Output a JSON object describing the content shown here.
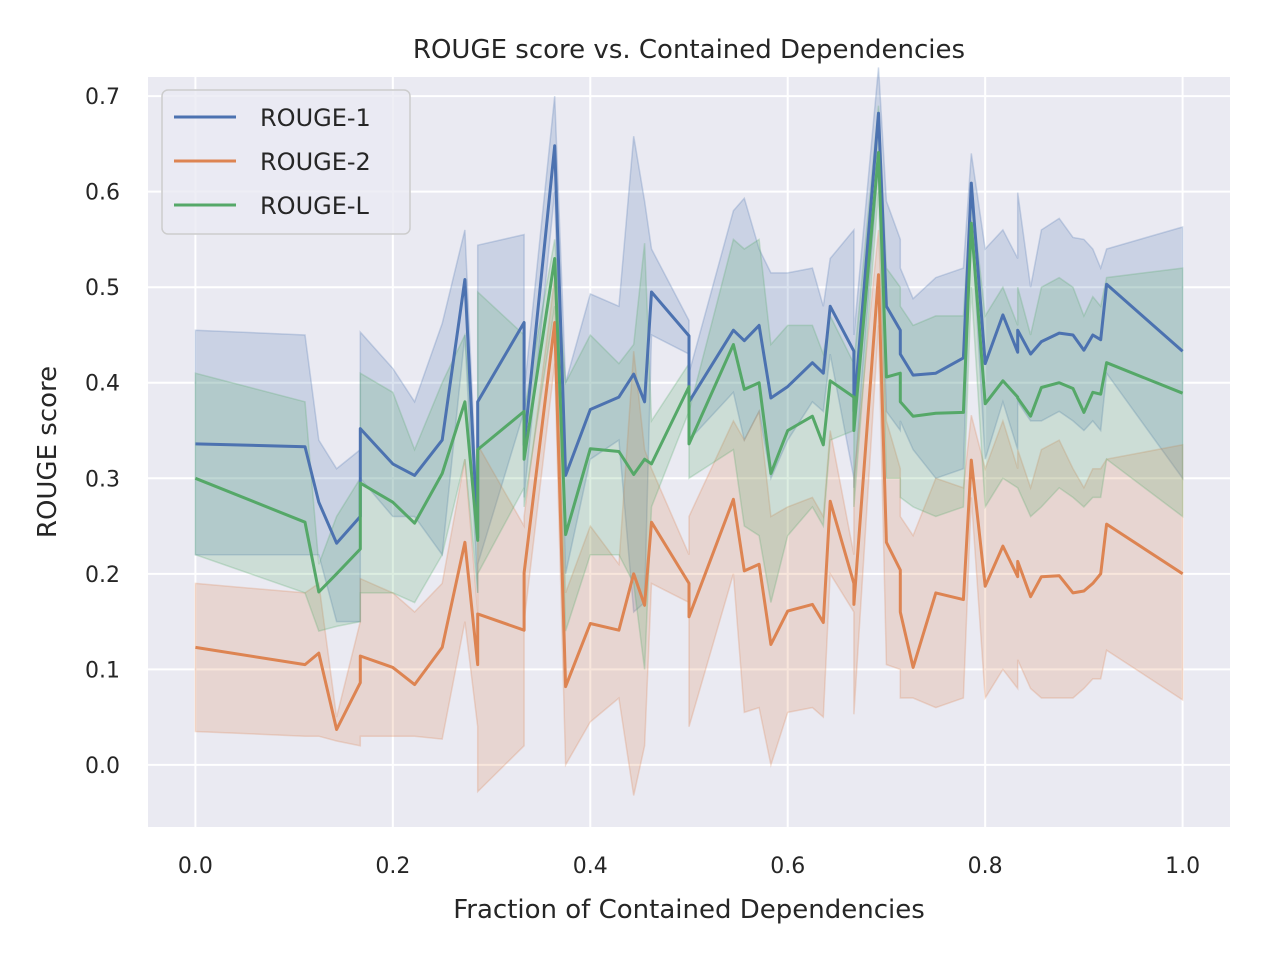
{
  "chart_data": {
    "type": "line",
    "title": "ROUGE score vs. Contained Dependencies",
    "xlabel": "Fraction of Contained Dependencies",
    "ylabel": "ROUGE score",
    "xlim": [
      -0.048,
      1.048
    ],
    "ylim": [
      -0.065,
      0.72
    ],
    "xticks": [
      0.0,
      0.2,
      0.4,
      0.6,
      0.8,
      1.0
    ],
    "xtick_labels": [
      "0.0",
      "0.2",
      "0.4",
      "0.6",
      "0.8",
      "1.0"
    ],
    "yticks": [
      0.0,
      0.1,
      0.2,
      0.3,
      0.4,
      0.5,
      0.6,
      0.7
    ],
    "ytick_labels": [
      "0.0",
      "0.1",
      "0.2",
      "0.3",
      "0.4",
      "0.5",
      "0.6",
      "0.7"
    ],
    "grid": true,
    "legend_position": "top-left",
    "x": [
      0.0,
      0.111,
      0.125,
      0.143,
      0.167,
      0.167,
      0.2,
      0.222,
      0.25,
      0.273,
      0.286,
      0.286,
      0.333,
      0.333,
      0.364,
      0.375,
      0.4,
      0.429,
      0.444,
      0.455,
      0.462,
      0.5,
      0.5,
      0.545,
      0.556,
      0.571,
      0.583,
      0.6,
      0.625,
      0.636,
      0.643,
      0.667,
      0.667,
      0.692,
      0.7,
      0.714,
      0.714,
      0.727,
      0.75,
      0.778,
      0.786,
      0.8,
      0.818,
      0.833,
      0.833,
      0.846,
      0.857,
      0.875,
      0.889,
      0.9,
      0.909,
      0.917,
      0.923,
      1.0
    ],
    "series": [
      {
        "name": "ROUGE-1",
        "color": "#4c72b0",
        "values": [
          0.336,
          0.333,
          0.275,
          0.232,
          0.26,
          0.352,
          0.315,
          0.303,
          0.34,
          0.508,
          0.238,
          0.38,
          0.463,
          0.335,
          0.648,
          0.303,
          0.372,
          0.385,
          0.409,
          0.38,
          0.495,
          0.449,
          0.38,
          0.455,
          0.444,
          0.46,
          0.384,
          0.396,
          0.421,
          0.41,
          0.48,
          0.433,
          0.37,
          0.682,
          0.48,
          0.455,
          0.43,
          0.408,
          0.41,
          0.426,
          0.609,
          0.42,
          0.471,
          0.432,
          0.455,
          0.43,
          0.443,
          0.452,
          0.45,
          0.434,
          0.45,
          0.445,
          0.503,
          0.433
        ],
        "ci_lower": [
          0.22,
          0.22,
          0.22,
          0.15,
          0.15,
          0.3,
          0.26,
          0.26,
          0.22,
          0.45,
          0.18,
          0.21,
          0.37,
          0.28,
          0.6,
          0.2,
          0.32,
          0.34,
          0.16,
          0.17,
          0.45,
          0.43,
          0.34,
          0.39,
          0.34,
          0.37,
          0.3,
          0.34,
          0.38,
          0.37,
          0.43,
          0.3,
          0.29,
          0.63,
          0.37,
          0.35,
          0.36,
          0.33,
          0.3,
          0.31,
          0.57,
          0.32,
          0.38,
          0.33,
          0.38,
          0.36,
          0.36,
          0.37,
          0.36,
          0.35,
          0.36,
          0.35,
          0.41,
          0.3
        ],
        "ci_upper": [
          0.455,
          0.45,
          0.34,
          0.31,
          0.33,
          0.453,
          0.415,
          0.38,
          0.462,
          0.56,
          0.26,
          0.544,
          0.555,
          0.39,
          0.7,
          0.4,
          0.493,
          0.48,
          0.658,
          0.59,
          0.54,
          0.465,
          0.41,
          0.58,
          0.593,
          0.54,
          0.515,
          0.515,
          0.52,
          0.48,
          0.53,
          0.56,
          0.45,
          0.73,
          0.59,
          0.55,
          0.52,
          0.488,
          0.51,
          0.52,
          0.64,
          0.54,
          0.56,
          0.53,
          0.599,
          0.5,
          0.56,
          0.572,
          0.552,
          0.55,
          0.54,
          0.52,
          0.54,
          0.563
        ]
      },
      {
        "name": "ROUGE-2",
        "color": "#dd8452",
        "values": [
          0.123,
          0.105,
          0.117,
          0.037,
          0.086,
          0.114,
          0.102,
          0.084,
          0.123,
          0.233,
          0.105,
          0.158,
          0.141,
          0.201,
          0.463,
          0.082,
          0.148,
          0.141,
          0.2,
          0.167,
          0.254,
          0.19,
          0.155,
          0.278,
          0.203,
          0.21,
          0.126,
          0.161,
          0.168,
          0.149,
          0.276,
          0.19,
          0.168,
          0.513,
          0.233,
          0.204,
          0.16,
          0.102,
          0.18,
          0.173,
          0.319,
          0.187,
          0.229,
          0.197,
          0.213,
          0.176,
          0.197,
          0.198,
          0.18,
          0.182,
          0.19,
          0.2,
          0.252,
          0.2
        ],
        "ci_lower": [
          0.035,
          0.03,
          0.03,
          0.025,
          0.02,
          0.03,
          0.03,
          0.03,
          0.027,
          0.15,
          0.04,
          -0.028,
          0.02,
          0.15,
          0.42,
          0.0,
          0.045,
          0.07,
          -0.032,
          0.02,
          0.19,
          0.17,
          0.04,
          0.2,
          0.055,
          0.06,
          0.0,
          0.055,
          0.06,
          0.05,
          0.2,
          0.16,
          0.053,
          0.46,
          0.105,
          0.1,
          0.07,
          0.07,
          0.06,
          0.07,
          0.28,
          0.07,
          0.1,
          0.08,
          0.11,
          0.08,
          0.07,
          0.07,
          0.07,
          0.08,
          0.09,
          0.09,
          0.12,
          0.068
        ],
        "ci_upper": [
          0.19,
          0.18,
          0.19,
          0.05,
          0.15,
          0.195,
          0.18,
          0.16,
          0.19,
          0.32,
          0.16,
          0.335,
          0.25,
          0.26,
          0.51,
          0.18,
          0.25,
          0.21,
          0.433,
          0.33,
          0.31,
          0.22,
          0.26,
          0.36,
          0.34,
          0.37,
          0.26,
          0.27,
          0.28,
          0.26,
          0.35,
          0.22,
          0.3,
          0.56,
          0.36,
          0.31,
          0.26,
          0.24,
          0.3,
          0.29,
          0.366,
          0.31,
          0.36,
          0.31,
          0.33,
          0.29,
          0.33,
          0.34,
          0.31,
          0.29,
          0.31,
          0.31,
          0.32,
          0.335
        ]
      },
      {
        "name": "ROUGE-L",
        "color": "#55a868",
        "values": [
          0.3,
          0.254,
          0.181,
          0.2,
          0.226,
          0.295,
          0.275,
          0.253,
          0.305,
          0.38,
          0.235,
          0.33,
          0.37,
          0.32,
          0.53,
          0.241,
          0.331,
          0.328,
          0.304,
          0.32,
          0.315,
          0.396,
          0.336,
          0.44,
          0.393,
          0.4,
          0.305,
          0.35,
          0.365,
          0.335,
          0.402,
          0.385,
          0.35,
          0.641,
          0.406,
          0.41,
          0.38,
          0.365,
          0.368,
          0.369,
          0.567,
          0.378,
          0.402,
          0.385,
          0.384,
          0.365,
          0.395,
          0.4,
          0.394,
          0.369,
          0.39,
          0.388,
          0.421,
          0.389
        ],
        "ci_lower": [
          0.22,
          0.18,
          0.14,
          0.145,
          0.15,
          0.18,
          0.18,
          0.17,
          0.22,
          0.32,
          0.18,
          0.2,
          0.29,
          0.27,
          0.48,
          0.14,
          0.22,
          0.22,
          0.19,
          0.1,
          0.27,
          0.37,
          0.3,
          0.33,
          0.25,
          0.24,
          0.17,
          0.24,
          0.27,
          0.25,
          0.34,
          0.35,
          0.27,
          0.6,
          0.3,
          0.3,
          0.28,
          0.27,
          0.26,
          0.27,
          0.5,
          0.27,
          0.3,
          0.29,
          0.29,
          0.26,
          0.27,
          0.29,
          0.28,
          0.27,
          0.28,
          0.28,
          0.32,
          0.26
        ],
        "ci_upper": [
          0.41,
          0.38,
          0.21,
          0.26,
          0.3,
          0.41,
          0.39,
          0.33,
          0.4,
          0.45,
          0.28,
          0.495,
          0.45,
          0.37,
          0.55,
          0.4,
          0.45,
          0.42,
          0.44,
          0.546,
          0.36,
          0.42,
          0.37,
          0.55,
          0.54,
          0.55,
          0.44,
          0.46,
          0.46,
          0.43,
          0.47,
          0.42,
          0.42,
          0.69,
          0.52,
          0.5,
          0.48,
          0.46,
          0.47,
          0.47,
          0.6,
          0.47,
          0.5,
          0.46,
          0.5,
          0.45,
          0.5,
          0.51,
          0.5,
          0.47,
          0.49,
          0.48,
          0.51,
          0.52
        ]
      }
    ]
  }
}
